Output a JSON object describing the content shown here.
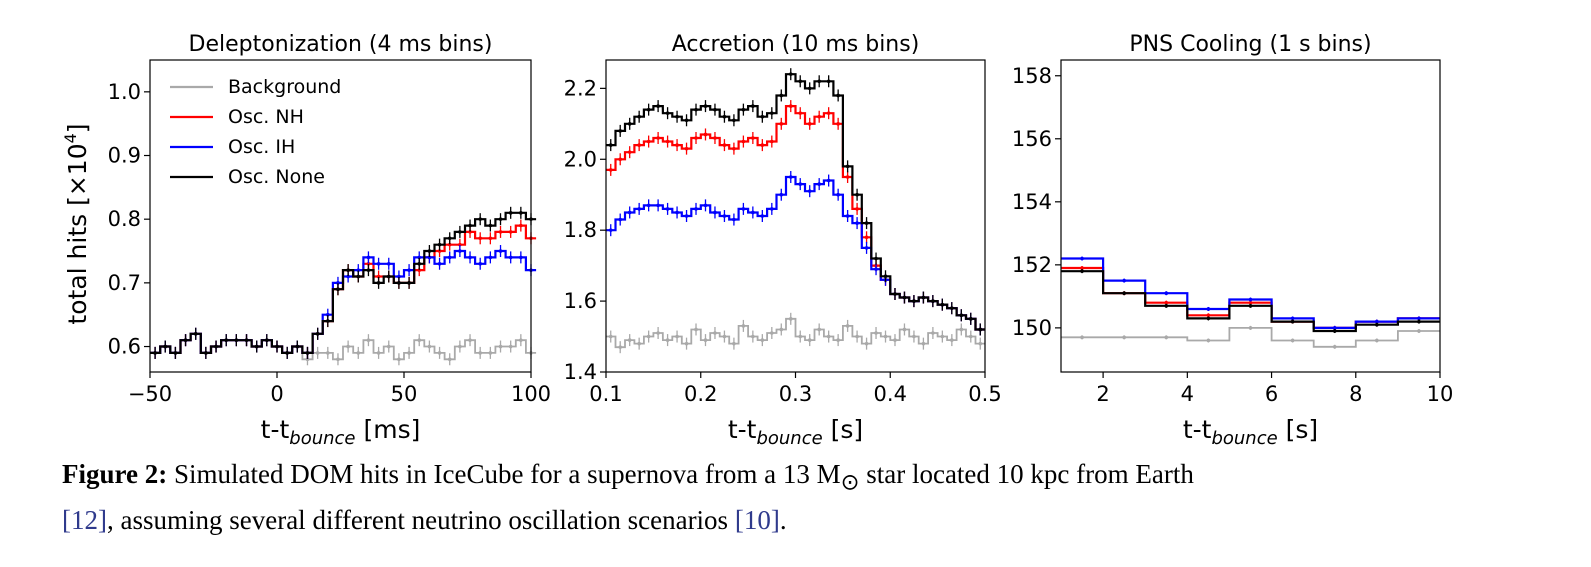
{
  "colors": {
    "background": "#a9a9a9",
    "nh": "#ff0000",
    "ih": "#0000ff",
    "none": "#000000",
    "ref_link": "#2f3a8c"
  },
  "chart_data": [
    {
      "type": "line",
      "title": "Deleptonization (4 ms bins)",
      "xlabel": "t-t_bounce [ms]",
      "ylabel": "total hits [×10^4]",
      "xlim": [
        -50,
        100
      ],
      "ylim": [
        0.56,
        1.05
      ],
      "xticks": [
        -50,
        0,
        50,
        100
      ],
      "xtick_labels": [
        "−50",
        "0",
        "50",
        "100"
      ],
      "yticks": [
        0.6,
        0.7,
        0.8,
        0.9,
        1.0
      ],
      "ytick_labels": [
        "0.6",
        "0.7",
        "0.8",
        "0.9",
        "1.0"
      ],
      "legend": "top-left",
      "x": [
        -50,
        -46,
        -42,
        -38,
        -34,
        -30,
        -26,
        -22,
        -18,
        -14,
        -10,
        -6,
        -2,
        2,
        6,
        10,
        14,
        18,
        22,
        26,
        30,
        34,
        38,
        42,
        46,
        50,
        54,
        58,
        62,
        66,
        70,
        74,
        78,
        82,
        86,
        90,
        94,
        98
      ],
      "series": [
        {
          "name": "Background",
          "color": "#a9a9a9",
          "values": [
            0.59,
            0.6,
            0.59,
            0.61,
            0.62,
            0.59,
            0.6,
            0.61,
            0.61,
            0.61,
            0.6,
            0.61,
            0.6,
            0.59,
            0.6,
            0.58,
            0.59,
            0.59,
            0.58,
            0.6,
            0.59,
            0.61,
            0.59,
            0.6,
            0.58,
            0.59,
            0.61,
            0.6,
            0.59,
            0.58,
            0.6,
            0.61,
            0.59,
            0.59,
            0.6,
            0.6,
            0.61,
            0.59
          ]
        },
        {
          "name": "Osc. NH",
          "color": "#ff0000",
          "values": [
            0.59,
            0.6,
            0.59,
            0.61,
            0.62,
            0.59,
            0.6,
            0.61,
            0.61,
            0.61,
            0.6,
            0.61,
            0.6,
            0.59,
            0.6,
            0.59,
            0.62,
            0.64,
            0.69,
            0.72,
            0.71,
            0.73,
            0.71,
            0.71,
            0.7,
            0.7,
            0.72,
            0.74,
            0.75,
            0.76,
            0.76,
            0.78,
            0.77,
            0.77,
            0.78,
            0.78,
            0.79,
            0.77
          ]
        },
        {
          "name": "Osc. IH",
          "color": "#0000ff",
          "values": [
            0.59,
            0.6,
            0.59,
            0.61,
            0.62,
            0.59,
            0.6,
            0.61,
            0.61,
            0.61,
            0.6,
            0.61,
            0.6,
            0.59,
            0.6,
            0.59,
            0.62,
            0.65,
            0.7,
            0.71,
            0.72,
            0.74,
            0.73,
            0.73,
            0.71,
            0.72,
            0.74,
            0.74,
            0.73,
            0.74,
            0.75,
            0.74,
            0.73,
            0.74,
            0.75,
            0.74,
            0.74,
            0.72
          ]
        },
        {
          "name": "Osc. None",
          "color": "#000000",
          "values": [
            0.59,
            0.6,
            0.59,
            0.61,
            0.62,
            0.59,
            0.6,
            0.61,
            0.61,
            0.61,
            0.6,
            0.61,
            0.6,
            0.59,
            0.6,
            0.59,
            0.62,
            0.64,
            0.69,
            0.72,
            0.71,
            0.72,
            0.7,
            0.71,
            0.7,
            0.7,
            0.73,
            0.75,
            0.76,
            0.77,
            0.78,
            0.79,
            0.8,
            0.79,
            0.8,
            0.81,
            0.81,
            0.8
          ]
        }
      ]
    },
    {
      "type": "line",
      "title": "Accretion (10 ms bins)",
      "xlabel": "t-t_bounce [s]",
      "ylabel": "",
      "xlim": [
        0.1,
        0.5
      ],
      "ylim": [
        1.4,
        2.28
      ],
      "xticks": [
        0.1,
        0.2,
        0.3,
        0.4,
        0.5
      ],
      "xtick_labels": [
        "0.1",
        "0.2",
        "0.3",
        "0.4",
        "0.5"
      ],
      "yticks": [
        1.4,
        1.6,
        1.8,
        2.0,
        2.2
      ],
      "ytick_labels": [
        "1.4",
        "1.6",
        "1.8",
        "2.0",
        "2.2"
      ],
      "x": [
        0.1,
        0.11,
        0.12,
        0.13,
        0.14,
        0.15,
        0.16,
        0.17,
        0.18,
        0.19,
        0.2,
        0.21,
        0.22,
        0.23,
        0.24,
        0.25,
        0.26,
        0.27,
        0.28,
        0.29,
        0.3,
        0.31,
        0.32,
        0.33,
        0.34,
        0.35,
        0.36,
        0.37,
        0.38,
        0.39,
        0.4,
        0.41,
        0.42,
        0.43,
        0.44,
        0.45,
        0.46,
        0.47,
        0.48,
        0.49
      ],
      "series": [
        {
          "name": "Background",
          "color": "#a9a9a9",
          "values": [
            1.5,
            1.47,
            1.49,
            1.48,
            1.5,
            1.51,
            1.49,
            1.5,
            1.48,
            1.52,
            1.49,
            1.51,
            1.5,
            1.48,
            1.53,
            1.5,
            1.49,
            1.51,
            1.52,
            1.55,
            1.5,
            1.49,
            1.52,
            1.5,
            1.49,
            1.53,
            1.5,
            1.48,
            1.51,
            1.5,
            1.49,
            1.52,
            1.5,
            1.48,
            1.51,
            1.5,
            1.49,
            1.52,
            1.5,
            1.48
          ]
        },
        {
          "name": "Osc. NH",
          "color": "#ff0000",
          "values": [
            1.97,
            2.0,
            2.02,
            2.04,
            2.05,
            2.06,
            2.05,
            2.04,
            2.03,
            2.06,
            2.07,
            2.06,
            2.04,
            2.03,
            2.05,
            2.06,
            2.04,
            2.05,
            2.1,
            2.15,
            2.13,
            2.1,
            2.12,
            2.13,
            2.1,
            1.95,
            1.86,
            1.78,
            1.7,
            1.66,
            1.62,
            1.61,
            1.6,
            1.61,
            1.6,
            1.59,
            1.58,
            1.56,
            1.55,
            1.52
          ]
        },
        {
          "name": "Osc. IH",
          "color": "#0000ff",
          "values": [
            1.8,
            1.83,
            1.85,
            1.86,
            1.87,
            1.87,
            1.86,
            1.85,
            1.84,
            1.86,
            1.87,
            1.85,
            1.84,
            1.83,
            1.86,
            1.85,
            1.84,
            1.86,
            1.9,
            1.95,
            1.93,
            1.91,
            1.93,
            1.94,
            1.9,
            1.84,
            1.82,
            1.75,
            1.69,
            1.66,
            1.62,
            1.61,
            1.6,
            1.61,
            1.6,
            1.59,
            1.58,
            1.56,
            1.55,
            1.52
          ]
        },
        {
          "name": "Osc. None",
          "color": "#000000",
          "values": [
            2.04,
            2.08,
            2.1,
            2.12,
            2.14,
            2.15,
            2.13,
            2.12,
            2.11,
            2.14,
            2.15,
            2.14,
            2.12,
            2.11,
            2.14,
            2.15,
            2.12,
            2.13,
            2.18,
            2.24,
            2.22,
            2.2,
            2.22,
            2.22,
            2.18,
            1.98,
            1.9,
            1.82,
            1.72,
            1.67,
            1.62,
            1.61,
            1.6,
            1.61,
            1.6,
            1.59,
            1.58,
            1.56,
            1.55,
            1.52
          ]
        }
      ]
    },
    {
      "type": "line",
      "title": "PNS Cooling (1 s bins)",
      "xlabel": "t-t_bounce  [s]",
      "ylabel": "",
      "xlim": [
        1,
        10
      ],
      "ylim": [
        148.6,
        158.5
      ],
      "xticks": [
        2,
        4,
        6,
        8,
        10
      ],
      "xtick_labels": [
        "2",
        "4",
        "6",
        "8",
        "10"
      ],
      "yticks": [
        150,
        152,
        154,
        156,
        158
      ],
      "ytick_labels": [
        "150",
        "152",
        "154",
        "156",
        "158"
      ],
      "x": [
        1,
        2,
        3,
        4,
        5,
        6,
        7,
        8,
        9
      ],
      "series": [
        {
          "name": "Background",
          "color": "#a9a9a9",
          "values": [
            149.7,
            149.7,
            149.7,
            149.6,
            150.0,
            149.6,
            149.4,
            149.6,
            149.9
          ]
        },
        {
          "name": "Osc. NH",
          "color": "#ff0000",
          "values": [
            151.9,
            151.1,
            150.8,
            150.4,
            150.8,
            150.2,
            150.0,
            150.2,
            150.3
          ]
        },
        {
          "name": "Osc. IH",
          "color": "#0000ff",
          "values": [
            152.2,
            151.5,
            151.1,
            150.6,
            150.9,
            150.3,
            150.0,
            150.2,
            150.3
          ]
        },
        {
          "name": "Osc. None",
          "color": "#000000",
          "values": [
            151.8,
            151.1,
            150.7,
            150.3,
            150.7,
            150.2,
            149.9,
            150.1,
            150.2
          ]
        }
      ]
    }
  ],
  "caption": {
    "label": "Figure 2:",
    "text_before_sub": "Simulated DOM hits in IceCube for a supernova from a 13 M",
    "sub": "⊙",
    "text_after_sub": " star located 10 kpc from Earth",
    "ref1": "[12]",
    "text_mid": ", assuming several different neutrino oscillation scenarios ",
    "ref2": "[10]",
    "text_end": "."
  }
}
